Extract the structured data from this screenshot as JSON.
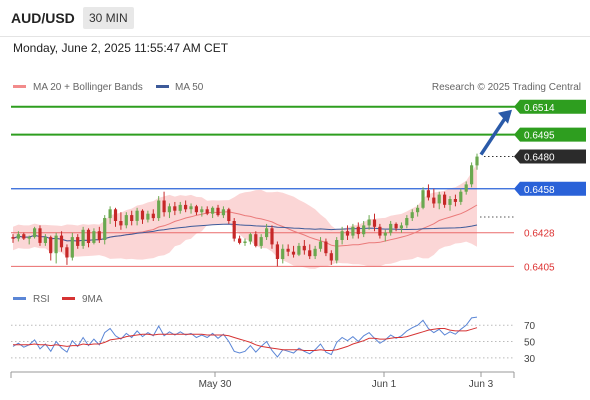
{
  "header": {
    "symbol": "AUD/USD",
    "timeframe": "30 MIN",
    "datetime": "Monday, June 2, 2025 11:55:47 AM CET"
  },
  "legend": {
    "items": [
      {
        "label": "MA 20 + Bollinger Bands",
        "color": "#f28b8b"
      },
      {
        "label": "MA 50",
        "color": "#3d5a99"
      }
    ],
    "research": "Research © 2025 Trading Central"
  },
  "colors": {
    "up": "#6aa84f",
    "down": "#c62828",
    "target": "#2e9e1f",
    "pivot": "#2a62d8",
    "support": "#ea6b6b",
    "arrow": "#2a5aa8",
    "rsi": "#5b86d6",
    "rsi_ma": "#d63333",
    "band_fill": "#fbd6d6"
  },
  "chart_data": [
    {
      "type": "candlestick",
      "title": "AUD/USD",
      "x_tick_labels": [
        "May 30",
        "Jun 1",
        "Jun 3"
      ],
      "y_range": [
        0.6395,
        0.652
      ],
      "last_price": 0.648,
      "levels": [
        {
          "value": 0.6514,
          "label": "0.6514",
          "kind": "target"
        },
        {
          "value": 0.6495,
          "label": "0.6495",
          "kind": "target"
        },
        {
          "value": 0.648,
          "label": "0.6480",
          "kind": "last"
        },
        {
          "value": 0.6458,
          "label": "0.6458",
          "kind": "pivot"
        },
        {
          "value": 0.6428,
          "label": "0.6428",
          "kind": "support"
        },
        {
          "value": 0.6405,
          "label": "0.6405",
          "kind": "support"
        }
      ],
      "candles": [
        [
          0.6425,
          0.6427,
          0.6421,
          0.6424
        ],
        [
          0.6424,
          0.6429,
          0.6422,
          0.6427
        ],
        [
          0.6427,
          0.6428,
          0.6423,
          0.6424
        ],
        [
          0.6424,
          0.6426,
          0.642,
          0.6425
        ],
        [
          0.6425,
          0.6432,
          0.6424,
          0.6431
        ],
        [
          0.6431,
          0.6433,
          0.6419,
          0.6421
        ],
        [
          0.6421,
          0.6427,
          0.6419,
          0.6425
        ],
        [
          0.6425,
          0.6426,
          0.6409,
          0.6414
        ],
        [
          0.6414,
          0.6428,
          0.6407,
          0.6426
        ],
        [
          0.6426,
          0.6429,
          0.6415,
          0.6418
        ],
        [
          0.6418,
          0.642,
          0.6406,
          0.6411
        ],
        [
          0.6411,
          0.6428,
          0.6409,
          0.6425
        ],
        [
          0.6425,
          0.6427,
          0.6417,
          0.6419
        ],
        [
          0.6419,
          0.6432,
          0.6417,
          0.643
        ],
        [
          0.643,
          0.6431,
          0.6418,
          0.6421
        ],
        [
          0.6421,
          0.6431,
          0.642,
          0.6429
        ],
        [
          0.6429,
          0.6432,
          0.6421,
          0.6423
        ],
        [
          0.6423,
          0.644,
          0.642,
          0.6438
        ],
        [
          0.6438,
          0.6446,
          0.6434,
          0.6444
        ],
        [
          0.6444,
          0.6445,
          0.6432,
          0.6436
        ],
        [
          0.6436,
          0.6442,
          0.643,
          0.6433
        ],
        [
          0.6433,
          0.6442,
          0.6431,
          0.644
        ],
        [
          0.644,
          0.6443,
          0.6433,
          0.6436
        ],
        [
          0.6436,
          0.6445,
          0.6433,
          0.6443
        ],
        [
          0.6443,
          0.6444,
          0.6434,
          0.6437
        ],
        [
          0.6437,
          0.6443,
          0.6435,
          0.6441
        ],
        [
          0.6441,
          0.6444,
          0.6436,
          0.6438
        ],
        [
          0.6438,
          0.6453,
          0.6436,
          0.645
        ],
        [
          0.645,
          0.6456,
          0.6439,
          0.6442
        ],
        [
          0.6442,
          0.6448,
          0.6438,
          0.6446
        ],
        [
          0.6446,
          0.6449,
          0.644,
          0.6443
        ],
        [
          0.6443,
          0.6449,
          0.6441,
          0.6447
        ],
        [
          0.6447,
          0.645,
          0.6442,
          0.6444
        ],
        [
          0.6444,
          0.6448,
          0.6441,
          0.6446
        ],
        [
          0.6446,
          0.6447,
          0.644,
          0.6442
        ],
        [
          0.6442,
          0.6446,
          0.6439,
          0.6444
        ],
        [
          0.6444,
          0.6446,
          0.644,
          0.6441
        ],
        [
          0.6441,
          0.6446,
          0.6438,
          0.6445
        ],
        [
          0.6445,
          0.6447,
          0.6439,
          0.644
        ],
        [
          0.644,
          0.6446,
          0.6438,
          0.6444
        ],
        [
          0.6444,
          0.6445,
          0.6434,
          0.6436
        ],
        [
          0.6436,
          0.6438,
          0.6422,
          0.6424
        ],
        [
          0.6424,
          0.6426,
          0.642,
          0.6421
        ],
        [
          0.6421,
          0.6424,
          0.6419,
          0.6422
        ],
        [
          0.6422,
          0.6428,
          0.642,
          0.6427
        ],
        [
          0.6427,
          0.6429,
          0.6418,
          0.6419
        ],
        [
          0.6419,
          0.6427,
          0.6417,
          0.6425
        ],
        [
          0.6425,
          0.6434,
          0.6423,
          0.6431
        ],
        [
          0.6431,
          0.6433,
          0.6417,
          0.642
        ],
        [
          0.642,
          0.6422,
          0.6405,
          0.641
        ],
        [
          0.641,
          0.642,
          0.6407,
          0.6417
        ],
        [
          0.6417,
          0.642,
          0.6412,
          0.6415
        ],
        [
          0.6415,
          0.6419,
          0.6411,
          0.6413
        ],
        [
          0.6413,
          0.6421,
          0.6412,
          0.6419
        ],
        [
          0.6419,
          0.6423,
          0.6413,
          0.6416
        ],
        [
          0.6416,
          0.642,
          0.641,
          0.6412
        ],
        [
          0.6412,
          0.6419,
          0.641,
          0.6417
        ],
        [
          0.6417,
          0.6425,
          0.6415,
          0.6422
        ],
        [
          0.6422,
          0.6424,
          0.6412,
          0.6414
        ],
        [
          0.6414,
          0.6416,
          0.6406,
          0.6409
        ],
        [
          0.6409,
          0.6425,
          0.6407,
          0.6423
        ],
        [
          0.6423,
          0.6432,
          0.642,
          0.6429
        ],
        [
          0.6429,
          0.6433,
          0.6423,
          0.6426
        ],
        [
          0.6426,
          0.6434,
          0.6424,
          0.6432
        ],
        [
          0.6432,
          0.6435,
          0.6424,
          0.6427
        ],
        [
          0.6427,
          0.6436,
          0.6425,
          0.6433
        ],
        [
          0.6433,
          0.644,
          0.643,
          0.6437
        ],
        [
          0.6437,
          0.6441,
          0.6429,
          0.6432
        ],
        [
          0.6432,
          0.6434,
          0.6424,
          0.6426
        ],
        [
          0.6426,
          0.643,
          0.6422,
          0.6428
        ],
        [
          0.6428,
          0.6436,
          0.6426,
          0.6434
        ],
        [
          0.6434,
          0.6435,
          0.6429,
          0.6431
        ],
        [
          0.6431,
          0.6435,
          0.6428,
          0.6433
        ],
        [
          0.6433,
          0.644,
          0.6431,
          0.6438
        ],
        [
          0.6438,
          0.6444,
          0.6436,
          0.6442
        ],
        [
          0.6442,
          0.6447,
          0.6439,
          0.6445
        ],
        [
          0.6445,
          0.6459,
          0.6444,
          0.6457
        ],
        [
          0.6457,
          0.6461,
          0.645,
          0.6452
        ],
        [
          0.6452,
          0.6458,
          0.6445,
          0.6448
        ],
        [
          0.6448,
          0.6456,
          0.6444,
          0.6454
        ],
        [
          0.6454,
          0.6456,
          0.6445,
          0.6447
        ],
        [
          0.6447,
          0.6453,
          0.6443,
          0.6451
        ],
        [
          0.6451,
          0.6454,
          0.6446,
          0.6449
        ],
        [
          0.6449,
          0.6458,
          0.6447,
          0.6456
        ],
        [
          0.6456,
          0.6463,
          0.6454,
          0.6461
        ],
        [
          0.6461,
          0.6476,
          0.6459,
          0.6474
        ],
        [
          0.6474,
          0.6482,
          0.6471,
          0.648
        ]
      ]
    },
    {
      "type": "line",
      "title": "RSI",
      "series": [
        {
          "name": "RSI",
          "values": [
            44,
            48,
            43,
            46,
            52,
            41,
            47,
            38,
            50,
            42,
            37,
            51,
            44,
            55,
            45,
            53,
            46,
            61,
            66,
            57,
            53,
            60,
            55,
            63,
            56,
            61,
            57,
            69,
            57,
            62,
            58,
            62,
            58,
            60,
            55,
            58,
            55,
            60,
            54,
            59,
            50,
            38,
            36,
            38,
            45,
            37,
            44,
            50,
            39,
            31,
            40,
            38,
            36,
            42,
            38,
            35,
            40,
            47,
            37,
            34,
            49,
            55,
            51,
            56,
            50,
            57,
            61,
            54,
            48,
            52,
            58,
            54,
            57,
            63,
            67,
            70,
            76,
            66,
            61,
            65,
            58,
            62,
            59,
            65,
            70,
            79,
            80
          ]
        },
        {
          "name": "9MA",
          "values": [
            46,
            46,
            46,
            46,
            47,
            46,
            46,
            45,
            46,
            45,
            44,
            45,
            45,
            47,
            46,
            47,
            47,
            49,
            52,
            53,
            54,
            56,
            57,
            58,
            59,
            59,
            58,
            59,
            59,
            59,
            59,
            59,
            59,
            59,
            59,
            59,
            58,
            58,
            58,
            58,
            57,
            55,
            53,
            51,
            49,
            46,
            44,
            43,
            42,
            41,
            40,
            40,
            40,
            40,
            39,
            39,
            39,
            40,
            39,
            39,
            40,
            42,
            44,
            47,
            49,
            51,
            54,
            54,
            53,
            53,
            54,
            55,
            55,
            56,
            58,
            60,
            62,
            64,
            65,
            66,
            66,
            64,
            63,
            63,
            63,
            65,
            67
          ]
        }
      ],
      "y_tick_labels": [
        "70",
        "50",
        "30"
      ],
      "ylim": [
        20,
        85
      ]
    }
  ]
}
